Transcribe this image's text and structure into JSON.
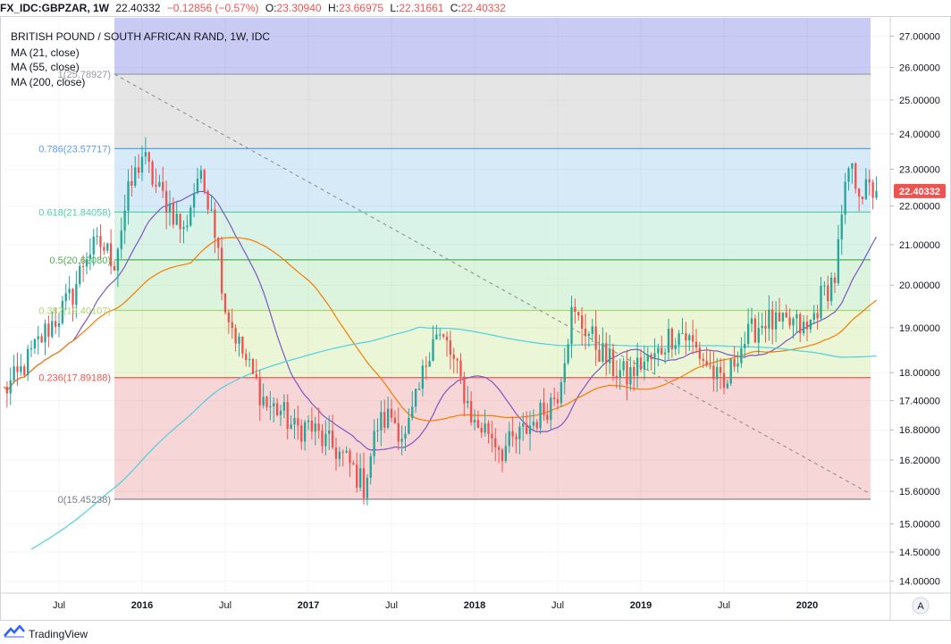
{
  "header": {
    "symbol": "FX_IDC:GBPZAR, 1W",
    "last": "22.40332",
    "change": "−0.12856 (−0.57%)",
    "open_key": "O:",
    "open": "23.30940",
    "high_key": "H:",
    "high": "23.66975",
    "low_key": "L:",
    "low": "22.31661",
    "close_key": "C:",
    "close": "22.40332"
  },
  "legend": {
    "title": "BRITISH POUND / SOUTH AFRICAN RAND, 1W, IDC",
    "ma21": "MA (21, close)",
    "ma55": "MA (55, close)",
    "ma200": "MA (200, close)"
  },
  "price_badge": "22.40332",
  "auto_button": "A",
  "footer": {
    "brand": "TradingView"
  },
  "colors": {
    "up": "#26a69a",
    "down": "#ef5350",
    "ma21": "#7e57c2",
    "ma55": "#f57c00",
    "ma200": "#4dd0e1",
    "fib_top": "#9598a1",
    "fib_0786": "#5b9cf6",
    "fib_0618": "#4dd0a1",
    "fib_05": "#4caf50",
    "fib_0382": "#a8d86e",
    "fib_0236": "#ef5350",
    "fib_0": "#787b86"
  },
  "chart_data": {
    "type": "candlestick",
    "title": "BRITISH POUND / SOUTH AFRICAN RAND, 1W, IDC",
    "y_scale": "log",
    "ylim": [
      13.8,
      27.6
    ],
    "y_ticks": [
      "27.00000",
      "26.00000",
      "25.00000",
      "24.00000",
      "23.00000",
      "22.00000",
      "21.00000",
      "20.00000",
      "19.00000",
      "18.00000",
      "17.40000",
      "16.80000",
      "16.20000",
      "15.60000",
      "15.00000",
      "14.50000",
      "14.00000"
    ],
    "x_range": [
      "2015-03",
      "2020-07"
    ],
    "x_ticks": [
      {
        "label": "Jul",
        "date": "2015-07"
      },
      {
        "label": "2016",
        "date": "2016-01"
      },
      {
        "label": "Jul",
        "date": "2016-07"
      },
      {
        "label": "2017",
        "date": "2017-01"
      },
      {
        "label": "Jul",
        "date": "2017-07"
      },
      {
        "label": "2018",
        "date": "2018-01"
      },
      {
        "label": "Jul",
        "date": "2018-07"
      },
      {
        "label": "2019",
        "date": "2019-01"
      },
      {
        "label": "Jul",
        "date": "2019-07"
      },
      {
        "label": "2020",
        "date": "2020-01"
      }
    ],
    "fib_retracement": {
      "start_date": "2015-11",
      "end_date": "2020-07",
      "levels": [
        {
          "label": "1(25.78927)",
          "ratio": 1,
          "value": 25.78927
        },
        {
          "label": "0.786(23.57717)",
          "ratio": 0.786,
          "value": 23.57717
        },
        {
          "label": "0.618(21.84058)",
          "ratio": 0.618,
          "value": 21.84058
        },
        {
          "label": "0.5(20.62080)",
          "ratio": 0.5,
          "value": 20.6208
        },
        {
          "label": "0.382(19.40107)",
          "ratio": 0.382,
          "value": 19.40107
        },
        {
          "label": "0.236(17.89188)",
          "ratio": 0.236,
          "value": 17.89188
        },
        {
          "label": "0(15.45238)",
          "ratio": 0,
          "value": 15.45238
        }
      ],
      "band_above_top": true
    },
    "trendline": {
      "style": "dashed",
      "from": {
        "date": "2015-11",
        "value": 25.79
      },
      "to": {
        "date": "2020-07",
        "value": 15.55
      }
    },
    "close_anchors": [
      [
        "2015-03",
        17.6
      ],
      [
        "2015-04",
        17.9
      ],
      [
        "2015-05",
        18.4
      ],
      [
        "2015-06",
        18.9
      ],
      [
        "2015-07",
        19.3
      ],
      [
        "2015-08",
        19.8
      ],
      [
        "2015-09",
        20.8
      ],
      [
        "2015-10",
        21.0
      ],
      [
        "2015-11",
        20.6
      ],
      [
        "2015-12",
        22.3
      ],
      [
        "2016-01",
        23.4
      ],
      [
        "2016-02",
        22.5
      ],
      [
        "2016-03",
        22.0
      ],
      [
        "2016-04",
        21.3
      ],
      [
        "2016-05",
        22.8
      ],
      [
        "2016-06",
        22.1
      ],
      [
        "2016-07",
        19.5
      ],
      [
        "2016-08",
        18.6
      ],
      [
        "2016-09",
        17.9
      ],
      [
        "2016-10",
        17.3
      ],
      [
        "2016-11",
        17.2
      ],
      [
        "2016-12",
        16.8
      ],
      [
        "2017-01",
        16.9
      ],
      [
        "2017-02",
        16.6
      ],
      [
        "2017-03",
        16.4
      ],
      [
        "2017-04",
        16.1
      ],
      [
        "2017-05",
        15.7
      ],
      [
        "2017-06",
        16.9
      ],
      [
        "2017-07",
        17.1
      ],
      [
        "2017-08",
        16.6
      ],
      [
        "2017-09",
        17.6
      ],
      [
        "2017-10",
        18.9
      ],
      [
        "2017-11",
        18.6
      ],
      [
        "2017-12",
        17.8
      ],
      [
        "2018-01",
        16.9
      ],
      [
        "2018-02",
        16.8
      ],
      [
        "2018-03",
        16.4
      ],
      [
        "2018-04",
        16.6
      ],
      [
        "2018-05",
        16.9
      ],
      [
        "2018-06",
        17.2
      ],
      [
        "2018-07",
        17.6
      ],
      [
        "2018-08",
        19.3
      ],
      [
        "2018-09",
        19.0
      ],
      [
        "2018-10",
        18.5
      ],
      [
        "2018-11",
        18.1
      ],
      [
        "2018-12",
        17.9
      ],
      [
        "2019-01",
        18.2
      ],
      [
        "2019-02",
        18.3
      ],
      [
        "2019-03",
        18.8
      ],
      [
        "2019-04",
        18.9
      ],
      [
        "2019-05",
        18.5
      ],
      [
        "2019-06",
        18.1
      ],
      [
        "2019-07",
        17.6
      ],
      [
        "2019-08",
        18.5
      ],
      [
        "2019-09",
        18.9
      ],
      [
        "2019-10",
        19.2
      ],
      [
        "2019-11",
        19.0
      ],
      [
        "2019-12",
        19.1
      ],
      [
        "2020-01",
        18.9
      ],
      [
        "2020-02",
        19.7
      ],
      [
        "2020-03",
        20.2
      ],
      [
        "2020-04",
        23.0
      ],
      [
        "2020-05",
        22.4
      ],
      [
        "2020-06",
        22.4033
      ]
    ],
    "moving_averages": [
      {
        "name": "MA (21, close)",
        "color": "#7e57c2"
      },
      {
        "name": "MA (55, close)",
        "color": "#f57c00"
      },
      {
        "name": "MA (200, close)",
        "color": "#4dd0e1"
      }
    ],
    "last_price": 22.40332
  }
}
